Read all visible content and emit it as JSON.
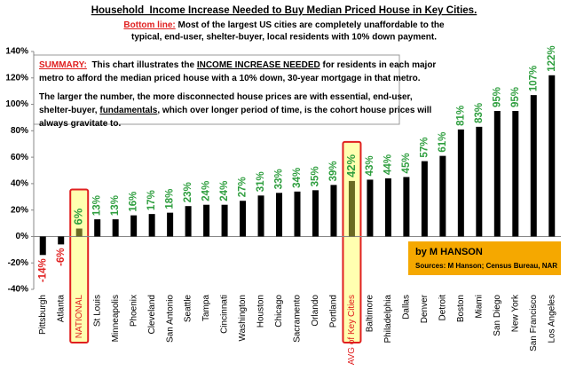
{
  "chart_data": {
    "type": "bar",
    "title": "Household  Income Increase Needed to Buy Median Priced House in Key Cities.",
    "subtitle_lead": "Bottom line:",
    "subtitle_lines": [
      "Most of the largest US cities are completely unaffordable to the",
      "typical, end-user, shelter-buyer, local residents with 10% down payment."
    ],
    "summary": [
      [
        {
          "text": "SUMMARY:",
          "u": true,
          "lead": true
        },
        {
          "text": "  This chart illustrates the "
        },
        {
          "text": "INCOME INCREASE NEEDED",
          "u": true
        },
        {
          "text": " for residents in each major"
        }
      ],
      [
        {
          "text": "metro to afford the median priced house with a 10% down, 30-year mortgage in that metro."
        }
      ],
      [
        {
          "text": "The larger the number, the more disconnected house prices are with essential, end-user,"
        }
      ],
      [
        {
          "text": "shelter-buyer, "
        },
        {
          "text": "fundamentals",
          "u": true
        },
        {
          "text": ", which over longer period of time, is the cohort house prices will"
        }
      ],
      [
        {
          "text": "always gravitate to."
        }
      ]
    ],
    "author": "by M HANSON",
    "sources": "Sources: M Hanson; Census Bureau, NAR",
    "categories": [
      "Pittsburgh",
      "Atlanta",
      "NATIONAL",
      "St Louis",
      "Minneapolis",
      "Phoenix",
      "Cleveland",
      "San Antonio",
      "Seattle",
      "Tampa",
      "Cincinnati",
      "Washington",
      "Houston",
      "Chicago",
      "Sacramento",
      "Orlando",
      "Portland",
      "AVG of Key Cities",
      "Baltimore",
      "Philadelphia",
      "Dallas",
      "Denver",
      "Detroit",
      "Boston",
      "Miami",
      "San Diego",
      "New York",
      "San Francisco",
      "Los Angeles"
    ],
    "values": [
      -14,
      -6,
      6,
      13,
      13,
      16,
      17,
      18,
      23,
      24,
      24,
      27,
      31,
      33,
      34,
      35,
      39,
      42,
      43,
      44,
      45,
      57,
      61,
      81,
      83,
      95,
      95,
      107,
      122
    ],
    "value_labels": [
      "-14%",
      "-6%",
      "6%",
      "13%",
      "13%",
      "16%",
      "17%",
      "18%",
      "23%",
      "24%",
      "24%",
      "27%",
      "31%",
      "33%",
      "34%",
      "35%",
      "39%",
      "42%",
      "43%",
      "44%",
      "45%",
      "57%",
      "61%",
      "81%",
      "83%",
      "95%",
      "95%",
      "107%",
      "122%"
    ],
    "color": "#000000",
    "highlight": [
      2,
      17
    ],
    "highlight_color": "#6b6b23",
    "positive_label_color": "#2e9e3e",
    "negative_label_color": "#e02020",
    "ylim": [
      -40,
      140
    ],
    "yticks": [
      {
        "value": -40,
        "label": "-40%"
      },
      {
        "value": -20,
        "label": "-20%"
      },
      {
        "value": 0,
        "label": "0%"
      },
      {
        "value": 20,
        "label": "20%"
      },
      {
        "value": 40,
        "label": "40%"
      },
      {
        "value": 60,
        "label": "60%"
      },
      {
        "value": 80,
        "label": "80%"
      },
      {
        "value": 100,
        "label": "100%"
      },
      {
        "value": 120,
        "label": "120%"
      },
      {
        "value": 140,
        "label": "140%"
      }
    ],
    "grid": false
  }
}
